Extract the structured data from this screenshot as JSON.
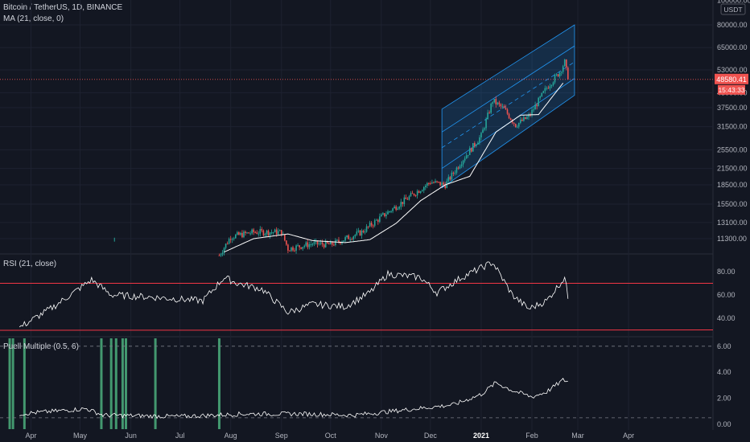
{
  "header": {
    "symbol": "Bitcoin / TetherUS, 1D, BINANCE",
    "ma": "MA (21, close, 0)",
    "currency": "USDT"
  },
  "colors": {
    "up": "#26a69a",
    "down": "#ef5350",
    "grid": "#1e2230",
    "text": "#b2b5be",
    "line": "#ffffff",
    "channel": "#2196f3",
    "rsi_band": "#f23645",
    "puell_bar": "#4caf7d"
  },
  "chart_data": [
    {
      "type": "line",
      "title": "Bitcoin / TetherUS, 1D, BINANCE",
      "y_scale": "log",
      "ylim": [
        10000,
        100000
      ],
      "y_ticks": [
        100000,
        80000,
        65000,
        53000,
        43000,
        37500,
        31500,
        25500,
        21500,
        18500,
        15500,
        13100,
        11300
      ],
      "last_price": "48580.41",
      "countdown": "15:43:33",
      "x_tick_labels": [
        "Apr",
        "May",
        "Jun",
        "Jul",
        "Aug",
        "Sep",
        "Oct",
        "Nov",
        "Dec",
        "2021",
        "Feb",
        "Mar",
        "Apr"
      ],
      "series": [
        {
          "name": "price",
          "x": [
            "2020-03-25",
            "2020-07-25",
            "2020-08-01",
            "2020-08-15",
            "2020-09-01",
            "2020-09-05",
            "2020-09-20",
            "2020-10-01",
            "2020-10-20",
            "2020-11-01",
            "2020-11-15",
            "2020-12-01",
            "2020-12-10",
            "2020-12-20",
            "2021-01-01",
            "2021-01-08",
            "2021-01-15",
            "2021-01-22",
            "2021-01-30",
            "2021-02-10",
            "2021-02-18",
            "2021-02-21",
            "2021-02-23"
          ],
          "values": [
            9600,
            9700,
            11500,
            12000,
            12000,
            10300,
            10800,
            10700,
            12000,
            13800,
            16000,
            19000,
            18500,
            23000,
            29000,
            40000,
            37000,
            32000,
            34500,
            45000,
            52000,
            57000,
            48580
          ]
        },
        {
          "name": "MA (21, close, 0)",
          "x": [
            "2020-07-28",
            "2020-08-15",
            "2020-09-05",
            "2020-09-20",
            "2020-10-10",
            "2020-10-25",
            "2020-11-10",
            "2020-11-25",
            "2020-12-10",
            "2020-12-25",
            "2021-01-10",
            "2021-01-25",
            "2021-02-05",
            "2021-02-20"
          ],
          "values": [
            10000,
            11300,
            11800,
            11100,
            10900,
            11200,
            13000,
            16000,
            18500,
            20000,
            30000,
            35000,
            35200,
            47000
          ]
        }
      ]
    },
    {
      "type": "line",
      "title": "RSI (21, close)",
      "ylim": [
        25,
        95
      ],
      "y_ticks": [
        80,
        60,
        40
      ],
      "bands": [
        70,
        30
      ],
      "x": [
        "2020-03-25",
        "2020-04-15",
        "2020-05-08",
        "2020-05-20",
        "2020-06-15",
        "2020-07-15",
        "2020-07-28",
        "2020-08-05",
        "2020-08-20",
        "2020-09-05",
        "2020-09-20",
        "2020-10-10",
        "2020-10-25",
        "2020-11-05",
        "2020-11-25",
        "2020-12-05",
        "2020-12-20",
        "2021-01-08",
        "2021-01-20",
        "2021-01-30",
        "2021-02-10",
        "2021-02-21",
        "2021-02-23"
      ],
      "values": [
        32,
        50,
        73,
        60,
        58,
        55,
        75,
        70,
        65,
        45,
        52,
        50,
        62,
        78,
        75,
        62,
        75,
        88,
        60,
        48,
        55,
        75,
        58
      ]
    },
    {
      "type": "line",
      "title": "Puell Multiple (0.5, 6)",
      "ylim": [
        -0.2,
        7
      ],
      "y_ticks": [
        6.0,
        4.0,
        2.0,
        0.0
      ],
      "reference_lines": [
        6,
        0.5
      ],
      "x": [
        "2020-03-25",
        "2020-05-05",
        "2020-05-15",
        "2020-07-01",
        "2020-08-10",
        "2020-09-15",
        "2020-10-15",
        "2020-11-15",
        "2020-12-15",
        "2021-01-01",
        "2021-01-10",
        "2021-01-20",
        "2021-02-01",
        "2021-02-10",
        "2021-02-20",
        "2021-02-23"
      ],
      "values": [
        0.8,
        1.2,
        0.7,
        0.6,
        0.8,
        0.8,
        0.7,
        1.1,
        1.5,
        2.3,
        3.2,
        2.6,
        2.1,
        2.5,
        3.4,
        3.3
      ],
      "signal_dates": [
        "2020-03-19",
        "2020-03-21",
        "2020-03-28",
        "2020-05-14",
        "2020-05-20",
        "2020-05-23",
        "2020-05-27",
        "2020-05-29",
        "2020-06-16",
        "2020-07-25"
      ]
    }
  ]
}
